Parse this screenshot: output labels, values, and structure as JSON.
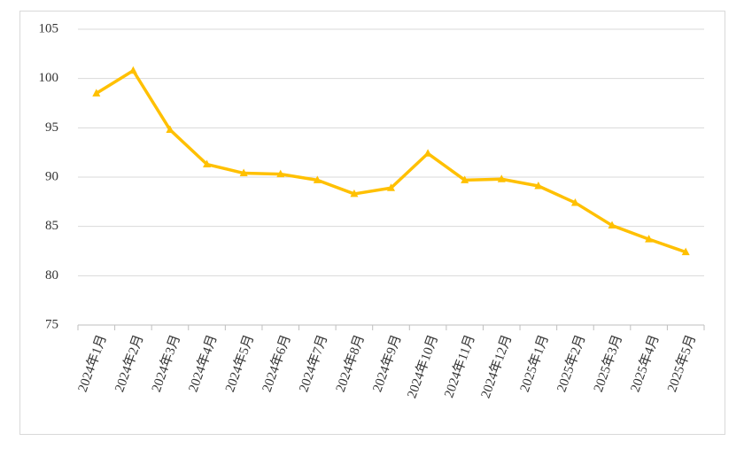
{
  "chart_data": {
    "type": "line",
    "categories": [
      "2024年1月",
      "2024年2月",
      "2024年3月",
      "2024年4月",
      "2024年5月",
      "2024年6月",
      "2024年7月",
      "2024年8月",
      "2024年9月",
      "2024年10月",
      "2024年11月",
      "2024年12月",
      "2025年1月",
      "2025年2月",
      "2025年3月",
      "2025年4月",
      "2025年5月"
    ],
    "series": [
      {
        "color": "#FFC000",
        "values": [
          98.5,
          100.8,
          94.8,
          91.3,
          90.4,
          90.3,
          89.7,
          88.3,
          88.9,
          92.4,
          89.7,
          89.8,
          89.1,
          87.4,
          85.1,
          83.7,
          82.4
        ]
      }
    ],
    "ylim": [
      75,
      105
    ],
    "yticks": [
      75,
      80,
      85,
      90,
      95,
      100,
      105
    ],
    "grid": true,
    "marker": "triangle"
  }
}
